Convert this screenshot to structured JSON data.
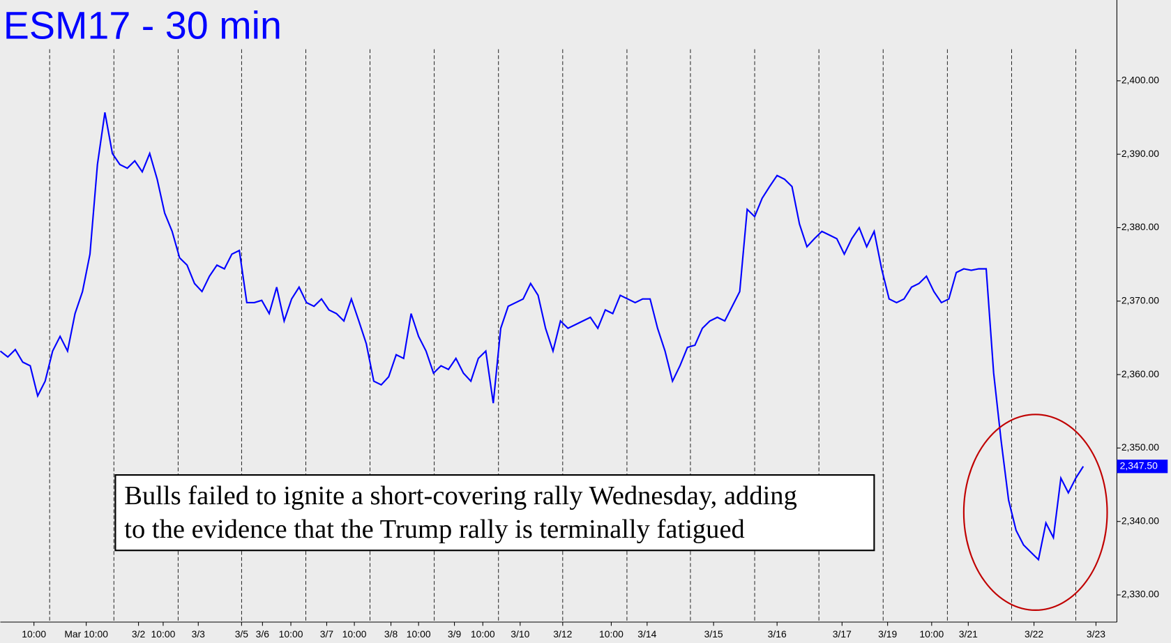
{
  "chart_data": {
    "type": "line",
    "title": "ESM17 - 30 min",
    "annotation": [
      "Bulls failed to ignite a short-covering rally Wednesday, adding",
      "to the evidence that the Trump rally is terminally fatigued"
    ],
    "series": [
      {
        "name": "ESM17",
        "color": "#0000ff",
        "values": [
          2363.2,
          2362.4,
          2363.4,
          2361.7,
          2361.2,
          2357.1,
          2359.1,
          2363.2,
          2365.2,
          2363.2,
          2368.3,
          2371.3,
          2376.4,
          2388.6,
          2395.7,
          2390.1,
          2388.6,
          2388.1,
          2389.1,
          2387.6,
          2390.1,
          2386.6,
          2382.0,
          2379.5,
          2375.9,
          2374.9,
          2372.4,
          2371.3,
          2373.4,
          2374.9,
          2374.4,
          2376.4,
          2376.9,
          2369.8,
          2369.8,
          2370.1,
          2368.3,
          2371.9,
          2367.3,
          2370.3,
          2371.9,
          2369.8,
          2369.3,
          2370.3,
          2368.8,
          2368.3,
          2367.3,
          2370.3,
          2367.3,
          2364.2,
          2359.1,
          2358.6,
          2359.7,
          2362.7,
          2362.2,
          2368.3,
          2365.2,
          2363.2,
          2360.2,
          2361.2,
          2360.7,
          2362.2,
          2360.2,
          2359.1,
          2362.2,
          2363.2,
          2356.1,
          2366.3,
          2369.3,
          2369.8,
          2370.3,
          2372.4,
          2370.8,
          2366.3,
          2363.2,
          2367.3,
          2366.3,
          2366.8,
          2367.3,
          2367.8,
          2366.3,
          2368.8,
          2368.3,
          2370.8,
          2370.3,
          2369.8,
          2370.3,
          2370.3,
          2366.3,
          2363.2,
          2359.1,
          2361.2,
          2363.7,
          2364.0,
          2366.3,
          2367.3,
          2367.8,
          2367.3,
          2369.3,
          2371.3,
          2382.5,
          2381.5,
          2384.0,
          2385.6,
          2387.1,
          2386.6,
          2385.6,
          2380.5,
          2377.4,
          2378.5,
          2379.5,
          2379.0,
          2378.5,
          2376.4,
          2378.5,
          2380.0,
          2377.4,
          2379.5,
          2374.4,
          2370.3,
          2369.8,
          2370.3,
          2371.9,
          2372.4,
          2373.4,
          2371.3,
          2369.8,
          2370.3,
          2373.9,
          2374.4,
          2374.2,
          2374.4,
          2374.4,
          2360.2,
          2351.0,
          2342.9,
          2338.8,
          2336.8,
          2335.8,
          2334.8,
          2339.8,
          2337.8,
          2345.9,
          2343.9,
          2345.9,
          2347.5
        ]
      }
    ],
    "last_price": {
      "value": 2347.5,
      "label": "2,347.50"
    },
    "xlim": [
      0,
      149.5
    ],
    "xticks": [
      {
        "value": 4.5,
        "label": "10:00"
      },
      {
        "value": 11.5,
        "label": "Mar 10:00"
      },
      {
        "value": 18.5,
        "label": "3/2"
      },
      {
        "value": 21.8,
        "label": "10:00"
      },
      {
        "value": 26.5,
        "label": "3/3"
      },
      {
        "value": 32.3,
        "label": "3/5"
      },
      {
        "value": 35.1,
        "label": "3/6"
      },
      {
        "value": 38.9,
        "label": "10:00"
      },
      {
        "value": 43.7,
        "label": "3/7"
      },
      {
        "value": 47.4,
        "label": "10:00"
      },
      {
        "value": 52.3,
        "label": "3/8"
      },
      {
        "value": 56,
        "label": "10:00"
      },
      {
        "value": 60.8,
        "label": "3/9"
      },
      {
        "value": 64.6,
        "label": "10:00"
      },
      {
        "value": 69.6,
        "label": "3/10"
      },
      {
        "value": 75.3,
        "label": "3/12"
      },
      {
        "value": 81.8,
        "label": "10:00"
      },
      {
        "value": 86.6,
        "label": "3/14"
      },
      {
        "value": 95.5,
        "label": "3/15"
      },
      {
        "value": 104,
        "label": "3/16"
      },
      {
        "value": 112.7,
        "label": "3/17"
      },
      {
        "value": 118.8,
        "label": "3/19"
      },
      {
        "value": 124.7,
        "label": "10:00"
      },
      {
        "value": 129.6,
        "label": "3/21"
      },
      {
        "value": 138.4,
        "label": "3/22"
      },
      {
        "value": 146.7,
        "label": "3/23"
      }
    ],
    "ylim": [
      2326.3,
      2411
    ],
    "yticks": [
      {
        "value": 2330,
        "label": "2,330.00"
      },
      {
        "value": 2340,
        "label": "2,340.00"
      },
      {
        "value": 2350,
        "label": "2,350.00"
      },
      {
        "value": 2360,
        "label": "2,360.00"
      },
      {
        "value": 2370,
        "label": "2,370.00"
      },
      {
        "value": 2380,
        "label": "2,380.00"
      },
      {
        "value": 2390,
        "label": "2,390.00"
      },
      {
        "value": 2400,
        "label": "2,400.00"
      }
    ]
  }
}
